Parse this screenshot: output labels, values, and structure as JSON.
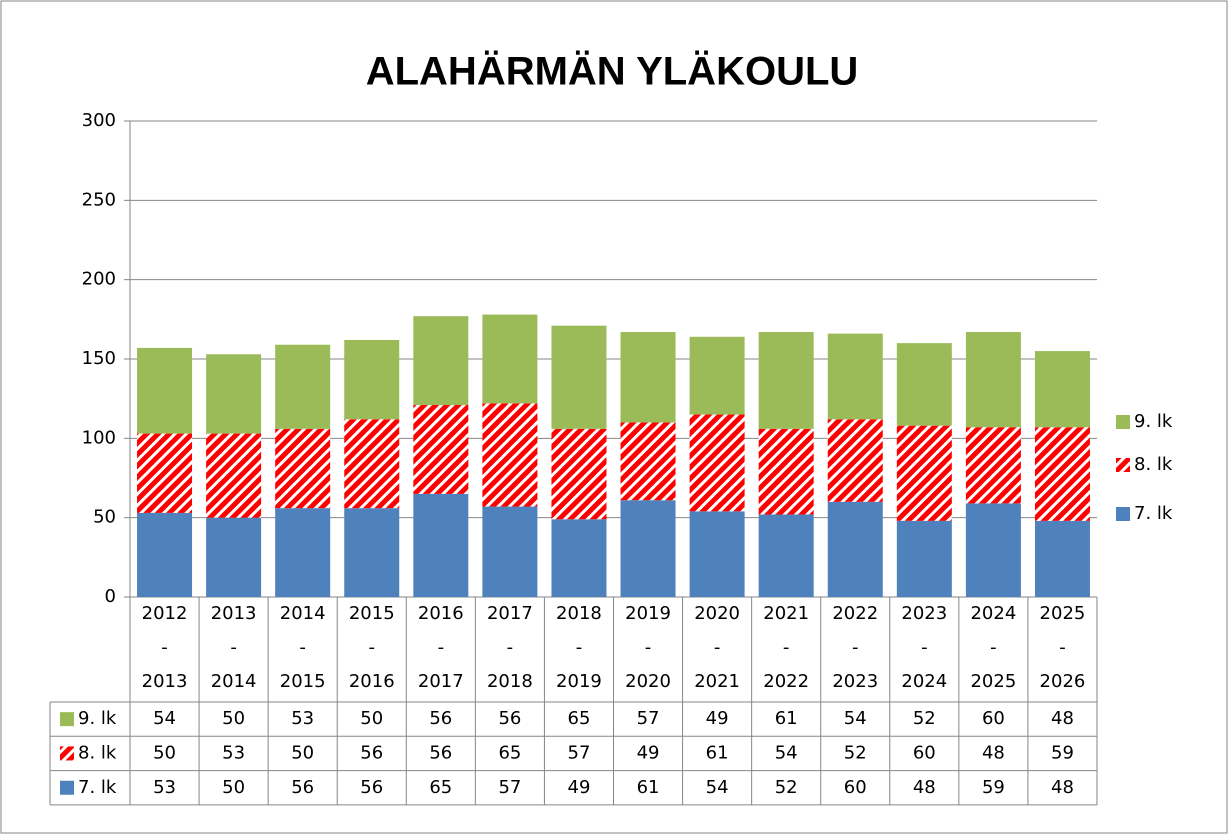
{
  "chart_data": {
    "type": "stacked_bar",
    "title": "ALAHÄRMÄN YLÄKOULU",
    "categories": [
      "2012\n-\n2013",
      "2013\n-\n2014",
      "2014\n-\n2015",
      "2015\n-\n2016",
      "2016\n-\n2017",
      "2017\n-\n2018",
      "2018\n-\n2019",
      "2019\n-\n2020",
      "2020\n-\n2021",
      "2021\n-\n2022",
      "2022\n-\n2023",
      "2023\n-\n2024",
      "2024\n-\n2025",
      "2025\n-\n2026"
    ],
    "series": [
      {
        "name": "9. lk",
        "color": "#9bbb59",
        "values": [
          54,
          50,
          53,
          50,
          56,
          56,
          65,
          57,
          49,
          61,
          54,
          52,
          60,
          48
        ]
      },
      {
        "name": "8. lk",
        "color": "#ff0000",
        "pattern": "diagonal",
        "values": [
          50,
          53,
          50,
          56,
          56,
          65,
          57,
          49,
          61,
          54,
          52,
          60,
          48,
          59
        ]
      },
      {
        "name": "7. lk",
        "color": "#4f81bd",
        "values": [
          53,
          50,
          56,
          56,
          65,
          57,
          49,
          61,
          54,
          52,
          60,
          48,
          59,
          48
        ]
      }
    ],
    "ylim": [
      0,
      300
    ],
    "yticks": [
      0,
      50,
      100,
      150,
      200,
      250,
      300
    ],
    "grid": true,
    "legend": "right",
    "data_table": true
  }
}
